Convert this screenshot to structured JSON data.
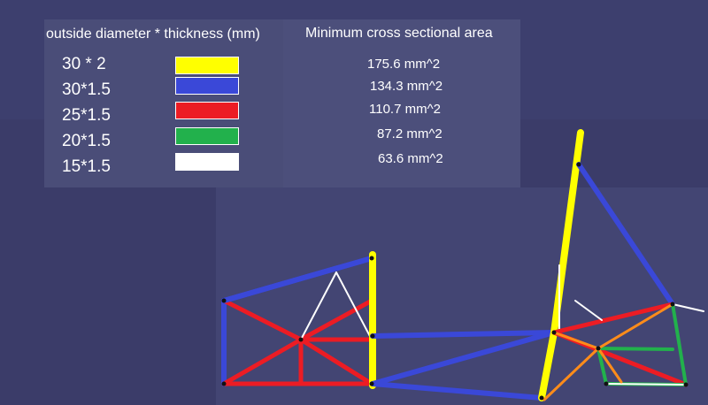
{
  "legend": {
    "title": "outside diameter * thickness (mm)",
    "area_title": "Minimum cross sectional area",
    "rows": [
      {
        "dimension": "30 * 2",
        "color": "#ffff00",
        "area": "175.6 mm^2"
      },
      {
        "dimension": "30*1.5",
        "color": "#3a48d8",
        "area": "134.3 mm^2"
      },
      {
        "dimension": "25*1.5",
        "color": "#ec1c24",
        "area": "110.7 mm^2"
      },
      {
        "dimension": "20*1.5",
        "color": "#22b14c",
        "area": "87.2 mm^2"
      },
      {
        "dimension": "15*1.5",
        "color": "#ffffff",
        "area": "63.6 mm^2"
      }
    ]
  },
  "extra_colors": {
    "orange": "#ff8c1a",
    "background": "#3c3d6b"
  }
}
